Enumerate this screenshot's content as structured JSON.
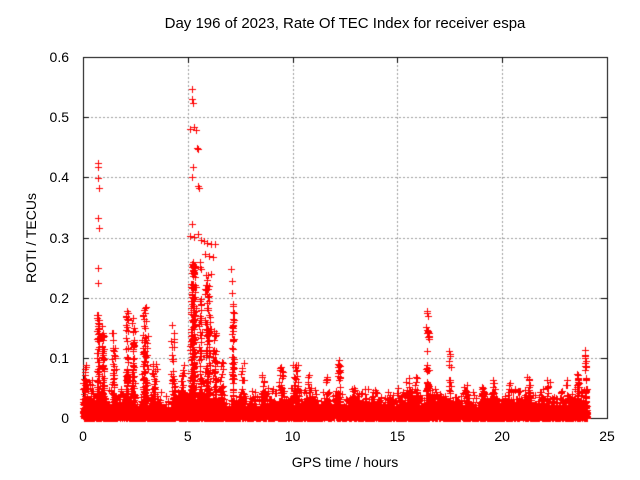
{
  "chart_data": {
    "type": "scatter",
    "title": "Day 196 of 2023, Rate Of TEC Index for receiver espa",
    "xlabel": "GPS time / hours",
    "ylabel": "ROTI / TECUs",
    "xlim": [
      0,
      25
    ],
    "ylim": [
      0,
      0.6
    ],
    "xticks": [
      0,
      5,
      10,
      15,
      20,
      25
    ],
    "yticks": [
      0,
      0.1,
      0.2,
      0.3,
      0.4,
      0.5,
      0.6
    ],
    "grid": "dashed-both-axes",
    "legend": "none",
    "marker": "plus",
    "marker_color": "#ff0000",
    "grid_color": "#9e9e9e",
    "axis_color": "#000000",
    "data_x_range": [
      0,
      24.05
    ],
    "baseline_band": {
      "description": "dense noise floor across all 24 hours, solid 0-0.03 TECU with fuzz to ~0.05",
      "points_per_hour": 400,
      "mean": 0.009,
      "max": 0.05
    },
    "towers": [
      {
        "x": 0.1,
        "top": 0.095,
        "w": 0.18,
        "n": 50,
        "p": 1.8
      },
      {
        "x": 0.35,
        "top": 0.065,
        "w": 0.25,
        "n": 40,
        "p": 2.0
      },
      {
        "x": 0.72,
        "top": 0.175,
        "w": 0.18,
        "n": 110,
        "p": 1.7
      },
      {
        "x": 0.95,
        "top": 0.155,
        "w": 0.15,
        "n": 70,
        "p": 1.8
      },
      {
        "x": 1.45,
        "top": 0.15,
        "w": 0.25,
        "n": 70,
        "p": 2.0
      },
      {
        "x": 2.1,
        "top": 0.175,
        "w": 0.18,
        "n": 90,
        "p": 1.8
      },
      {
        "x": 2.4,
        "top": 0.17,
        "w": 0.15,
        "n": 70,
        "p": 1.8
      },
      {
        "x": 2.95,
        "top": 0.185,
        "w": 0.3,
        "n": 120,
        "p": 1.8
      },
      {
        "x": 3.4,
        "top": 0.095,
        "w": 0.25,
        "n": 40,
        "p": 2.0
      },
      {
        "x": 4.3,
        "top": 0.14,
        "w": 0.22,
        "n": 45,
        "p": 2.2
      },
      {
        "x": 4.75,
        "top": 0.09,
        "w": 0.2,
        "n": 40,
        "p": 2.0
      },
      {
        "x": 5.25,
        "top": 0.26,
        "w": 0.3,
        "n": 240,
        "p": 1.6
      },
      {
        "x": 5.6,
        "top": 0.2,
        "w": 0.2,
        "n": 90,
        "p": 1.8
      },
      {
        "x": 5.95,
        "top": 0.24,
        "w": 0.3,
        "n": 130,
        "p": 1.8
      },
      {
        "x": 6.3,
        "top": 0.16,
        "w": 0.2,
        "n": 60,
        "p": 2.0
      },
      {
        "x": 6.6,
        "top": 0.1,
        "w": 0.25,
        "n": 40,
        "p": 2.0
      },
      {
        "x": 7.15,
        "top": 0.2,
        "w": 0.15,
        "n": 60,
        "p": 1.5
      },
      {
        "x": 7.6,
        "top": 0.095,
        "w": 0.25,
        "n": 40,
        "p": 2.0
      },
      {
        "x": 8.6,
        "top": 0.075,
        "w": 0.25,
        "n": 40,
        "p": 2.0
      },
      {
        "x": 9.45,
        "top": 0.088,
        "w": 0.35,
        "n": 55,
        "p": 2.0
      },
      {
        "x": 10.15,
        "top": 0.091,
        "w": 0.3,
        "n": 55,
        "p": 1.8
      },
      {
        "x": 10.75,
        "top": 0.071,
        "w": 0.12,
        "n": 18,
        "p": 2.0
      },
      {
        "x": 11.65,
        "top": 0.068,
        "w": 0.15,
        "n": 18,
        "p": 2.0
      },
      {
        "x": 12.2,
        "top": 0.097,
        "w": 0.2,
        "n": 45,
        "p": 1.8
      },
      {
        "x": 12.95,
        "top": 0.055,
        "w": 0.3,
        "n": 30,
        "p": 2.0
      },
      {
        "x": 13.8,
        "top": 0.045,
        "w": 0.4,
        "n": 30,
        "p": 2.0
      },
      {
        "x": 14.6,
        "top": 0.055,
        "w": 0.3,
        "n": 30,
        "p": 2.0
      },
      {
        "x": 15.5,
        "top": 0.07,
        "w": 0.25,
        "n": 35,
        "p": 2.0
      },
      {
        "x": 15.9,
        "top": 0.082,
        "w": 0.15,
        "n": 30,
        "p": 2.0
      },
      {
        "x": 16.45,
        "top": 0.175,
        "w": 0.25,
        "n": 55,
        "p": 2.6
      },
      {
        "x": 17.5,
        "top": 0.11,
        "w": 0.18,
        "n": 40,
        "p": 2.4
      },
      {
        "x": 18.3,
        "top": 0.06,
        "w": 0.35,
        "n": 30,
        "p": 2.0
      },
      {
        "x": 19.1,
        "top": 0.055,
        "w": 0.3,
        "n": 30,
        "p": 2.0
      },
      {
        "x": 19.55,
        "top": 0.065,
        "w": 0.15,
        "n": 20,
        "p": 2.0
      },
      {
        "x": 20.4,
        "top": 0.06,
        "w": 0.35,
        "n": 35,
        "p": 2.0
      },
      {
        "x": 21.3,
        "top": 0.07,
        "w": 0.3,
        "n": 35,
        "p": 2.0
      },
      {
        "x": 22.2,
        "top": 0.068,
        "w": 0.3,
        "n": 35,
        "p": 2.0
      },
      {
        "x": 23.1,
        "top": 0.072,
        "w": 0.25,
        "n": 35,
        "p": 2.0
      },
      {
        "x": 23.6,
        "top": 0.078,
        "w": 0.2,
        "n": 30,
        "p": 2.0
      },
      {
        "x": 23.98,
        "top": 0.105,
        "w": 0.1,
        "n": 30,
        "p": 1.6
      }
    ],
    "outliers": [
      [
        0.72,
        0.424
      ],
      [
        0.73,
        0.417
      ],
      [
        0.73,
        0.399
      ],
      [
        0.74,
        0.382
      ],
      [
        0.72,
        0.332
      ],
      [
        0.74,
        0.316
      ],
      [
        0.72,
        0.249
      ],
      [
        0.73,
        0.224
      ],
      [
        5.2,
        0.547
      ],
      [
        5.21,
        0.53
      ],
      [
        5.26,
        0.524
      ],
      [
        5.12,
        0.481
      ],
      [
        5.28,
        0.483
      ],
      [
        5.38,
        0.478
      ],
      [
        5.42,
        0.449
      ],
      [
        5.48,
        0.447
      ],
      [
        5.24,
        0.417
      ],
      [
        5.19,
        0.401
      ],
      [
        5.49,
        0.386
      ],
      [
        5.55,
        0.383
      ],
      [
        5.21,
        0.322
      ],
      [
        5.12,
        0.303
      ],
      [
        5.3,
        0.301
      ],
      [
        5.48,
        0.306
      ],
      [
        5.62,
        0.296
      ],
      [
        5.78,
        0.294
      ],
      [
        5.92,
        0.291
      ],
      [
        6.1,
        0.289
      ],
      [
        6.28,
        0.29
      ],
      [
        5.8,
        0.273
      ],
      [
        5.99,
        0.27
      ],
      [
        6.18,
        0.267
      ],
      [
        5.56,
        0.259
      ],
      [
        5.6,
        0.251
      ],
      [
        5.63,
        0.247
      ],
      [
        7.08,
        0.247
      ],
      [
        7.12,
        0.228
      ],
      [
        7.1,
        0.208
      ],
      [
        7.18,
        0.19
      ],
      [
        7.14,
        0.176
      ],
      [
        7.2,
        0.163
      ],
      [
        4.25,
        0.155
      ],
      [
        4.32,
        0.141
      ],
      [
        4.2,
        0.128
      ],
      [
        2.1,
        0.178
      ],
      [
        2.95,
        0.175
      ],
      [
        3.0,
        0.185
      ],
      [
        12.22,
        0.097
      ],
      [
        12.2,
        0.088
      ],
      [
        12.24,
        0.079
      ],
      [
        16.4,
        0.178
      ],
      [
        16.45,
        0.17
      ],
      [
        16.42,
        0.142
      ],
      [
        16.52,
        0.131
      ],
      [
        17.45,
        0.112
      ],
      [
        17.52,
        0.103
      ],
      [
        17.48,
        0.094
      ],
      [
        10.78,
        0.071
      ],
      [
        11.64,
        0.068
      ],
      [
        19.55,
        0.063
      ],
      [
        21.3,
        0.065
      ],
      [
        23.95,
        0.113
      ],
      [
        23.97,
        0.105
      ],
      [
        24.0,
        0.095
      ],
      [
        23.99,
        0.086
      ]
    ],
    "seed": 196
  }
}
